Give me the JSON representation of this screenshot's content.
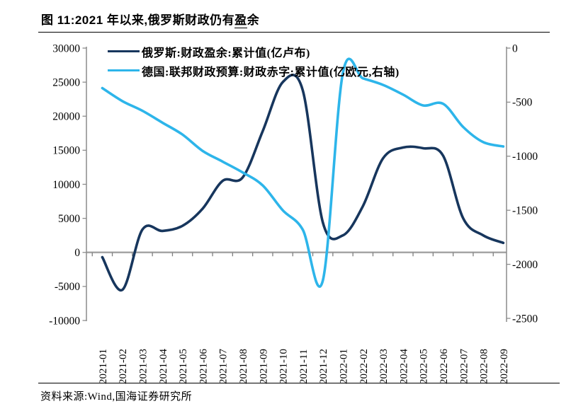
{
  "title": {
    "prefix": "图 11:2021 年以来,俄罗斯财政仍有",
    "underlined": "盈",
    "suffix": "余"
  },
  "legend": {
    "items": [
      {
        "label": "俄罗斯:财政盈余:累计值(亿卢布)",
        "color": "#17365D"
      },
      {
        "label": "德国:联邦财政预算:财政赤字:累计值(亿欧元,右轴)",
        "color": "#2DB5EA"
      }
    ]
  },
  "footer": {
    "source": "资料来源:Wind,国海证券研究所"
  },
  "colors": {
    "navy": "#17365D",
    "light_blue": "#2DB5EA",
    "axis_gray": "#8C8C8C",
    "zero_line_gray": "#A6A6A6",
    "tick_gray": "#7F7F7F",
    "text": "#000000"
  },
  "chart_data": {
    "type": "line",
    "title": "图 11:2021 年以来,俄罗斯财政仍有盈余",
    "categories": [
      "2021-01",
      "2021-02",
      "2021-03",
      "2021-04",
      "2021-05",
      "2021-06",
      "2021-07",
      "2021-08",
      "2021-09",
      "2021-10",
      "2021-11",
      "2021-12",
      "2022-01",
      "2022-02",
      "2022-03",
      "2022-04",
      "2022-05",
      "2022-06",
      "2022-07",
      "2022-08",
      "2022-09"
    ],
    "series": [
      {
        "name": "俄罗斯:财政盈余:累计值(亿卢布)",
        "axis": "left",
        "unit": "亿卢布",
        "color": "#17365D",
        "values": [
          -700,
          -5500,
          3350,
          3150,
          3900,
          6400,
          10500,
          11000,
          17800,
          25000,
          23800,
          4400,
          2500,
          6800,
          13800,
          15400,
          15300,
          14200,
          5000,
          2500,
          1400
        ]
      },
      {
        "name": "德国:联邦财政预算:财政赤字:累计值(亿欧元,右轴)",
        "axis": "right",
        "unit": "亿欧元",
        "color": "#2DB5EA",
        "values": [
          -370,
          -490,
          -580,
          -690,
          -800,
          -950,
          -1050,
          -1150,
          -1270,
          -1500,
          -1680,
          -2150,
          -230,
          -280,
          -340,
          -430,
          -530,
          -515,
          -730,
          -870,
          -910
        ]
      }
    ],
    "left_axis": {
      "min": -10000,
      "max": 30000,
      "step": 5000,
      "ticks": [
        30000,
        25000,
        20000,
        15000,
        10000,
        5000,
        0,
        -5000,
        -10000
      ]
    },
    "right_axis": {
      "min": -2500,
      "max": 0,
      "step": 500,
      "ticks": [
        0,
        -500,
        -1000,
        -1500,
        -2000,
        -2500
      ]
    },
    "legend_position": "top-left",
    "grid": false,
    "zero_line": true,
    "smooth": true
  }
}
